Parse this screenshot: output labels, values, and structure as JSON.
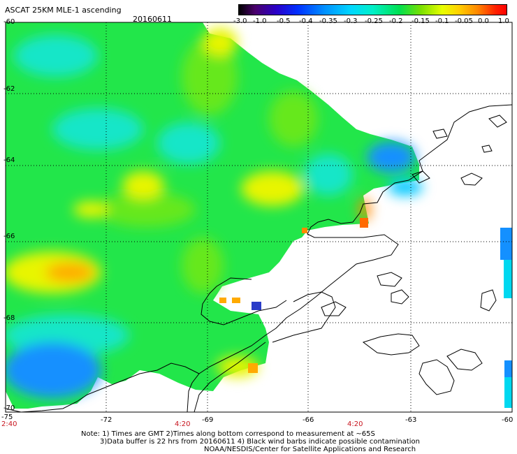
{
  "title": "ASCAT 25KM MLE-1 ascending",
  "date": "20160611",
  "colorbar": {
    "tick_labels": [
      "-3.0",
      "-1.0",
      "-0.5",
      "-0.4",
      "-0.35",
      "-0.3",
      "-0.25",
      "-0.2",
      "-0.15",
      "-0.1",
      "-0.05",
      "0.0",
      "1.0"
    ],
    "colors": [
      "#000000",
      "#4a006b",
      "#2a00c8",
      "#0030ff",
      "#0090ff",
      "#00d8ff",
      "#00f0c8",
      "#00e050",
      "#7ae000",
      "#e8ff00",
      "#ffd200",
      "#ff8a00",
      "#ff0000"
    ]
  },
  "latitude_labels": [
    "-60",
    "-62",
    "-64",
    "-66",
    "-68",
    "-70"
  ],
  "longitude_labels": [
    "-75",
    "-72",
    "-69",
    "-66",
    "-63",
    "-60"
  ],
  "time_labels": [
    "2:40",
    "4:20",
    "4:20"
  ],
  "notes": [
    "Note: 1) Times are GMT 2)Times along bottom correspond to measurement at ~65S",
    "3)Data buffer is 22 hrs from 20160611 4) Black wind barbs indicate possible contamination",
    "NOAA/NESDIS/Center for Satellite Applications and Research"
  ],
  "field_colors": {
    "green": "#22e64a",
    "lime": "#66e81e",
    "yellow": "#e8f500",
    "orange": "#ffaa00",
    "cyan": "#19e6c8",
    "sky": "#00c8ff",
    "blue": "#1490ff",
    "dark_blue": "#2a3cc8"
  }
}
